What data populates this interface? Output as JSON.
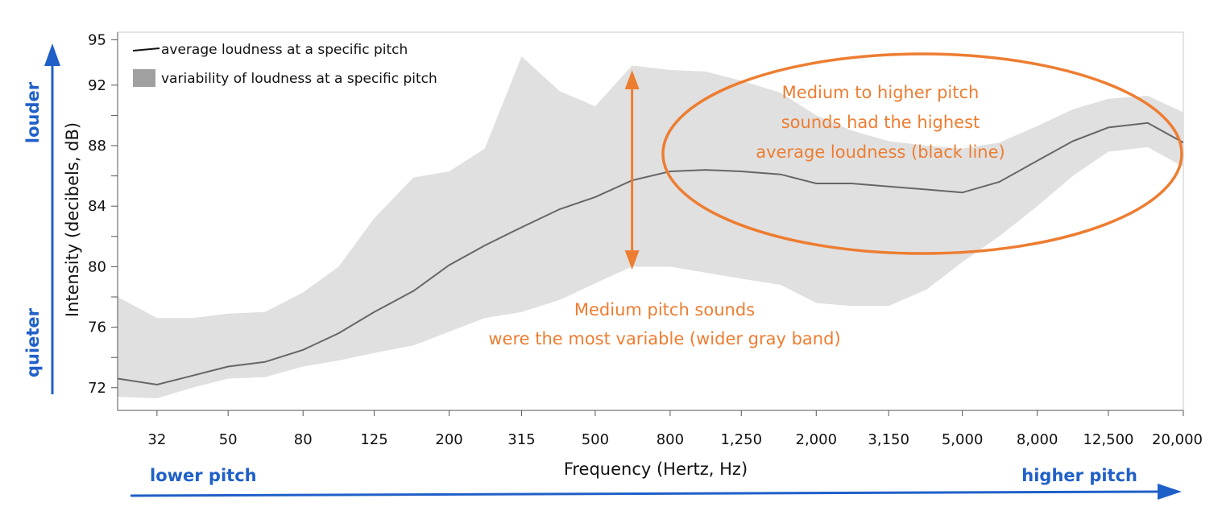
{
  "colors": {
    "annotation": "#ed7d31",
    "pitch_arrow": "#1f5fc8",
    "band": "#e0e0e0",
    "line": "#666666",
    "legend_swatch": "#a0a0a0"
  },
  "chart_data": {
    "type": "area",
    "title": "",
    "xlabel": "Frequency (Hertz, Hz)",
    "ylabel": "Intensity  (decibels, dB)",
    "x_scale": "log",
    "xlim": [
      25,
      20000
    ],
    "ylim": [
      70.5,
      95.5
    ],
    "grid": false,
    "legend_position": "top-left",
    "x_ticks": [
      32,
      50,
      80,
      125,
      200,
      315,
      500,
      800,
      1250,
      2000,
      3150,
      5000,
      8000,
      12500,
      20000
    ],
    "x_tick_labels": [
      "32",
      "50",
      "80",
      "125",
      "200",
      "315",
      "500",
      "800",
      "1,250",
      "2,000",
      "3,150",
      "5,000",
      "8,000",
      "12,500",
      "20,000"
    ],
    "y_ticks": [
      72,
      76,
      80,
      84,
      88,
      92,
      95
    ],
    "y_tick_labels": [
      "72",
      "76",
      "80",
      "84",
      "88",
      "92",
      "95"
    ],
    "y_minor_ticks": [
      74,
      78,
      82,
      86,
      90
    ],
    "x": [
      25,
      32,
      40,
      50,
      63,
      80,
      100,
      125,
      160,
      200,
      250,
      315,
      400,
      500,
      630,
      800,
      1000,
      1250,
      1600,
      2000,
      2500,
      3150,
      4000,
      5000,
      6300,
      8000,
      10000,
      12500,
      16000,
      20000
    ],
    "series": [
      {
        "name": "average loudness at a specific pitch",
        "values": [
          72.6,
          72.2,
          72.8,
          73.4,
          73.7,
          74.5,
          75.6,
          77.0,
          78.4,
          80.1,
          81.4,
          82.6,
          83.8,
          84.6,
          85.7,
          86.3,
          86.4,
          86.3,
          86.1,
          85.5,
          85.5,
          85.3,
          85.1,
          84.9,
          85.6,
          87.0,
          88.3,
          89.2,
          89.5,
          88.2
        ]
      },
      {
        "name": "variability of loudness at a specific pitch",
        "lower": [
          71.4,
          71.3,
          72.0,
          72.6,
          72.7,
          73.4,
          73.8,
          74.3,
          74.8,
          75.7,
          76.6,
          77.0,
          77.8,
          78.9,
          80.0,
          80.0,
          79.6,
          79.2,
          78.8,
          77.6,
          77.4,
          77.4,
          78.5,
          80.3,
          82.0,
          84.0,
          86.0,
          87.6,
          87.9,
          86.6
        ],
        "upper": [
          78.0,
          76.6,
          76.6,
          76.9,
          77.0,
          78.3,
          80.0,
          83.2,
          85.9,
          86.3,
          87.8,
          93.9,
          91.6,
          90.6,
          93.3,
          93.0,
          92.9,
          92.3,
          91.5,
          90.0,
          89.0,
          88.3,
          88.0,
          87.8,
          88.2,
          89.3,
          90.4,
          91.1,
          91.3,
          90.2
        ]
      }
    ],
    "annotations": {
      "high_pitch": [
        "Medium to higher pitch",
        "sounds had the highest",
        "average loudness  (black line)"
      ],
      "variability": [
        "Medium pitch sounds",
        "were the most variable (wider gray band)"
      ]
    },
    "variability_arrow": {
      "x": 630,
      "y_top": 93.0,
      "y_bottom": 79.8
    }
  },
  "side_labels": {
    "louder": "louder",
    "quieter": "quieter",
    "lower_pitch": "lower pitch",
    "higher_pitch": "higher pitch"
  }
}
